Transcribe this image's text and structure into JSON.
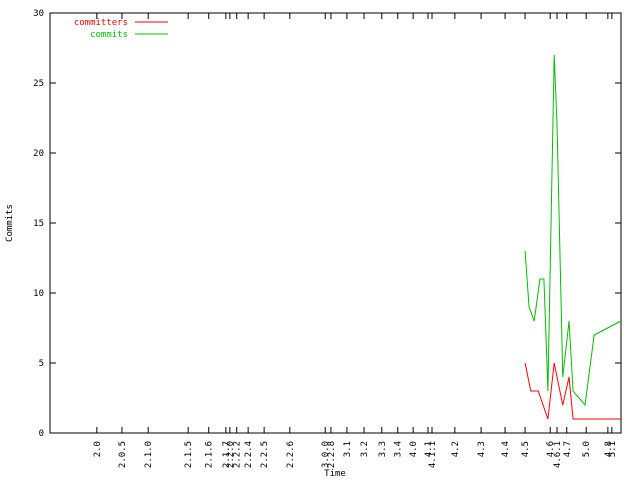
{
  "chart_data": {
    "type": "line",
    "title": null,
    "xlabel": "Time",
    "ylabel": "Commits",
    "xlim": [
      0,
      100
    ],
    "ylim": [
      0,
      30
    ],
    "yticks": [
      0,
      5,
      10,
      15,
      20,
      25,
      30
    ],
    "xticks": [
      {
        "value": 8.2,
        "label": "2.0"
      },
      {
        "value": 12.6,
        "label": "2.0.5"
      },
      {
        "value": 17.2,
        "label": "2.1.0"
      },
      {
        "value": 24.2,
        "label": "2.1.5"
      },
      {
        "value": 27.8,
        "label": "2.1.6"
      },
      {
        "value": 30.8,
        "label": "2.1.7"
      },
      {
        "value": 31.5,
        "label": "2.2.0"
      },
      {
        "value": 32.7,
        "label": "2.2.2"
      },
      {
        "value": 34.7,
        "label": "2.2.4"
      },
      {
        "value": 37.5,
        "label": "2.2.5"
      },
      {
        "value": 42.0,
        "label": "2.2.6"
      },
      {
        "value": 48.2,
        "label": "3.0.0"
      },
      {
        "value": 49.2,
        "label": "2.2.8"
      },
      {
        "value": 52.0,
        "label": "3.1"
      },
      {
        "value": 55.0,
        "label": "3.2"
      },
      {
        "value": 58.1,
        "label": "3.3"
      },
      {
        "value": 60.9,
        "label": "3.4"
      },
      {
        "value": 63.6,
        "label": "4.0"
      },
      {
        "value": 66.2,
        "label": "4.1"
      },
      {
        "value": 66.9,
        "label": "4.1.1"
      },
      {
        "value": 70.9,
        "label": "4.2"
      },
      {
        "value": 75.5,
        "label": "4.3"
      },
      {
        "value": 79.7,
        "label": "4.4"
      },
      {
        "value": 83.2,
        "label": "4.5"
      },
      {
        "value": 87.6,
        "label": "4.6"
      },
      {
        "value": 88.8,
        "label": "4.6.1"
      },
      {
        "value": 90.5,
        "label": "4.7"
      },
      {
        "value": 93.9,
        "label": "5.0"
      },
      {
        "value": 97.7,
        "label": "4.8"
      },
      {
        "value": 98.4,
        "label": "5.1"
      }
    ],
    "series": [
      {
        "name": "committers",
        "color": "#ff0000",
        "x": [
          83.2,
          84.2,
          85.5,
          87.2,
          88.3,
          89.8,
          90.9,
          91.6,
          100
        ],
        "values": [
          5,
          3,
          3,
          1,
          5,
          2,
          4,
          1,
          1
        ]
      },
      {
        "name": "commits",
        "color": "#00c000",
        "x": [
          83.2,
          83.9,
          84.8,
          85.8,
          86.5,
          87.2,
          88.3,
          88.8,
          89.8,
          90.9,
          91.6,
          93.7,
          95.3,
          100
        ],
        "values": [
          13,
          9,
          8,
          11,
          11,
          3,
          27,
          22,
          4,
          8,
          3,
          2,
          7,
          8
        ]
      }
    ],
    "legend": "top-left",
    "grid": false
  }
}
